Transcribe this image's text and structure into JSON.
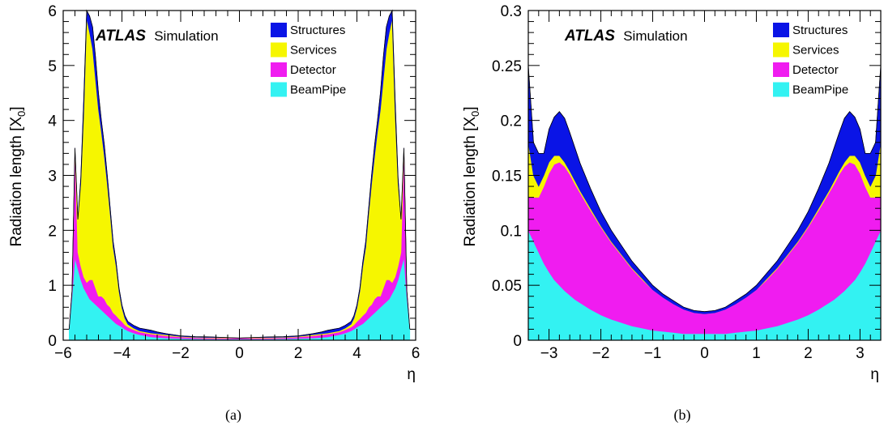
{
  "chart_data": [
    {
      "type": "area",
      "panel_label": "(a)",
      "badge_bold": "ATLAS",
      "badge_text": "Simulation",
      "ylabel": "Radiation length [X",
      "ylabel_sub": "0",
      "ylabel_close": "]",
      "xlabel": "η",
      "xlim": [
        -6,
        6
      ],
      "ylim": [
        0,
        6
      ],
      "xticks": [
        -6,
        -4,
        -2,
        0,
        2,
        4,
        6
      ],
      "xtick_labels": [
        "−6",
        "−4",
        "−2",
        "0",
        "2",
        "4",
        "6"
      ],
      "yticks": [
        0,
        1,
        2,
        3,
        4,
        5,
        6
      ],
      "ytick_labels": [
        "0",
        "1",
        "2",
        "3",
        "4",
        "5",
        "6"
      ],
      "x": [
        -5.8,
        -5.7,
        -5.6,
        -5.5,
        -5.4,
        -5.3,
        -5.2,
        -5.1,
        -5.0,
        -4.9,
        -4.8,
        -4.7,
        -4.6,
        -4.5,
        -4.4,
        -4.3,
        -4.2,
        -4.1,
        -4.0,
        -3.9,
        -3.8,
        -3.6,
        -3.4,
        -3.2,
        -3.0,
        -2.8,
        -2.5,
        -2.0,
        -1.5,
        -1.0,
        -0.5,
        0.0,
        0.5,
        1.0,
        1.5,
        2.0,
        2.5,
        2.8,
        3.0,
        3.2,
        3.4,
        3.6,
        3.8,
        3.9,
        4.0,
        4.1,
        4.2,
        4.3,
        4.4,
        4.5,
        4.6,
        4.7,
        4.8,
        4.9,
        5.0,
        5.1,
        5.2,
        5.3,
        5.4,
        5.5,
        5.6,
        5.7,
        5.8
      ],
      "series": [
        {
          "name": "BeamPipe",
          "color": "#33f2f2",
          "values": [
            0.2,
            0.8,
            1.5,
            1.3,
            1.1,
            0.95,
            0.85,
            0.75,
            0.7,
            0.65,
            0.6,
            0.55,
            0.5,
            0.45,
            0.4,
            0.35,
            0.3,
            0.27,
            0.24,
            0.2,
            0.17,
            0.13,
            0.1,
            0.08,
            0.06,
            0.05,
            0.04,
            0.03,
            0.025,
            0.02,
            0.02,
            0.02,
            0.02,
            0.02,
            0.025,
            0.03,
            0.04,
            0.05,
            0.06,
            0.08,
            0.1,
            0.13,
            0.17,
            0.2,
            0.24,
            0.27,
            0.3,
            0.35,
            0.4,
            0.45,
            0.5,
            0.55,
            0.6,
            0.65,
            0.7,
            0.75,
            0.85,
            0.95,
            1.1,
            1.3,
            1.5,
            0.8,
            0.2
          ]
        },
        {
          "name": "Detector",
          "color": "#f01cf0",
          "values": [
            0.0,
            0.1,
            2.0,
            0.3,
            0.25,
            0.2,
            0.2,
            0.35,
            0.4,
            0.3,
            0.2,
            0.25,
            0.25,
            0.2,
            0.2,
            0.15,
            0.15,
            0.12,
            0.1,
            0.08,
            0.07,
            0.06,
            0.05,
            0.05,
            0.05,
            0.05,
            0.04,
            0.03,
            0.02,
            0.02,
            0.02,
            0.02,
            0.02,
            0.02,
            0.02,
            0.03,
            0.04,
            0.05,
            0.05,
            0.05,
            0.05,
            0.06,
            0.07,
            0.08,
            0.1,
            0.12,
            0.15,
            0.15,
            0.2,
            0.2,
            0.25,
            0.25,
            0.2,
            0.3,
            0.4,
            0.35,
            0.2,
            0.2,
            0.25,
            0.3,
            2.0,
            0.1,
            0.0
          ]
        },
        {
          "name": "Services",
          "color": "#f6f600",
          "values": [
            0.0,
            0.0,
            0.0,
            0.6,
            1.5,
            3.0,
            4.8,
            4.5,
            4.2,
            3.8,
            3.4,
            3.0,
            2.6,
            2.2,
            1.7,
            1.2,
            0.9,
            0.5,
            0.25,
            0.12,
            0.05,
            0.03,
            0.02,
            0.02,
            0.02,
            0.02,
            0.02,
            0.01,
            0.01,
            0.01,
            0.01,
            0.0,
            0.01,
            0.01,
            0.01,
            0.01,
            0.02,
            0.02,
            0.02,
            0.02,
            0.02,
            0.03,
            0.05,
            0.12,
            0.25,
            0.5,
            0.9,
            1.2,
            1.7,
            2.2,
            2.6,
            3.0,
            3.4,
            3.8,
            4.2,
            4.5,
            4.8,
            3.0,
            1.5,
            0.6,
            0.0,
            0.0,
            0.0
          ]
        },
        {
          "name": "Structures",
          "color": "#0a14e6",
          "values": [
            0.0,
            0.0,
            0.0,
            0.0,
            0.1,
            0.25,
            0.4,
            0.3,
            0.4,
            0.4,
            0.3,
            0.2,
            0.2,
            0.15,
            0.1,
            0.1,
            0.08,
            0.06,
            0.05,
            0.05,
            0.05,
            0.05,
            0.05,
            0.05,
            0.05,
            0.03,
            0.02,
            0.01,
            0.01,
            0.01,
            0.0,
            0.0,
            0.0,
            0.01,
            0.01,
            0.01,
            0.02,
            0.03,
            0.05,
            0.05,
            0.05,
            0.05,
            0.05,
            0.05,
            0.05,
            0.06,
            0.08,
            0.1,
            0.1,
            0.15,
            0.2,
            0.2,
            0.3,
            0.4,
            0.4,
            0.3,
            0.4,
            0.25,
            0.1,
            0.0,
            0.0,
            0.0,
            0.0
          ]
        }
      ],
      "legend": [
        "Structures",
        "Services",
        "Detector",
        "BeamPipe"
      ],
      "legend_placement": "top-right",
      "grid": false
    },
    {
      "type": "area",
      "panel_label": "(b)",
      "badge_bold": "ATLAS",
      "badge_text": "Simulation",
      "ylabel": "Radiation length [X",
      "ylabel_sub": "0",
      "ylabel_close": "]",
      "xlabel": "η",
      "xlim": [
        -3.4,
        3.4
      ],
      "ylim": [
        0,
        0.3
      ],
      "xticks": [
        -3,
        -2,
        -1,
        0,
        1,
        2,
        3
      ],
      "xtick_labels": [
        "−3",
        "−2",
        "−1",
        "0",
        "1",
        "2",
        "3"
      ],
      "yticks": [
        0,
        0.05,
        0.1,
        0.15,
        0.2,
        0.25,
        0.3
      ],
      "ytick_labels": [
        "0",
        "0.05",
        "0.1",
        "0.15",
        "0.2",
        "0.25",
        "0.3"
      ],
      "x": [
        -3.4,
        -3.3,
        -3.2,
        -3.1,
        -3.0,
        -2.9,
        -2.8,
        -2.7,
        -2.6,
        -2.5,
        -2.4,
        -2.2,
        -2.0,
        -1.8,
        -1.6,
        -1.4,
        -1.2,
        -1.0,
        -0.8,
        -0.6,
        -0.4,
        -0.2,
        0.0,
        0.2,
        0.4,
        0.6,
        0.8,
        1.0,
        1.2,
        1.4,
        1.6,
        1.8,
        2.0,
        2.2,
        2.4,
        2.5,
        2.6,
        2.7,
        2.8,
        2.9,
        3.0,
        3.1,
        3.2,
        3.3,
        3.4
      ],
      "series": [
        {
          "name": "BeamPipe",
          "color": "#33f2f2",
          "values": [
            0.1,
            0.09,
            0.08,
            0.07,
            0.062,
            0.055,
            0.05,
            0.045,
            0.041,
            0.037,
            0.034,
            0.028,
            0.023,
            0.019,
            0.016,
            0.013,
            0.011,
            0.009,
            0.008,
            0.007,
            0.006,
            0.006,
            0.006,
            0.006,
            0.006,
            0.007,
            0.008,
            0.009,
            0.011,
            0.013,
            0.016,
            0.019,
            0.023,
            0.028,
            0.034,
            0.037,
            0.041,
            0.045,
            0.05,
            0.055,
            0.062,
            0.07,
            0.08,
            0.09,
            0.1
          ]
        },
        {
          "name": "Detector",
          "color": "#f01cf0",
          "values": [
            0.03,
            0.04,
            0.05,
            0.07,
            0.09,
            0.105,
            0.112,
            0.113,
            0.11,
            0.105,
            0.1,
            0.09,
            0.08,
            0.07,
            0.061,
            0.052,
            0.044,
            0.037,
            0.031,
            0.026,
            0.022,
            0.019,
            0.018,
            0.019,
            0.022,
            0.026,
            0.031,
            0.037,
            0.044,
            0.052,
            0.061,
            0.07,
            0.08,
            0.09,
            0.1,
            0.105,
            0.11,
            0.113,
            0.112,
            0.105,
            0.09,
            0.07,
            0.05,
            0.04,
            0.03
          ]
        },
        {
          "name": "Services",
          "color": "#f6f600",
          "values": [
            0.05,
            0.02,
            0.01,
            0.01,
            0.01,
            0.008,
            0.006,
            0.004,
            0.003,
            0.003,
            0.002,
            0.002,
            0.001,
            0.001,
            0.001,
            0.001,
            0.001,
            0.0,
            0.0,
            0.0,
            0.0,
            0.0,
            0.0,
            0.0,
            0.0,
            0.0,
            0.0,
            0.0,
            0.001,
            0.001,
            0.001,
            0.001,
            0.001,
            0.002,
            0.002,
            0.003,
            0.003,
            0.004,
            0.006,
            0.008,
            0.01,
            0.01,
            0.01,
            0.02,
            0.05
          ]
        },
        {
          "name": "Structures",
          "color": "#0a14e6",
          "values": [
            0.07,
            0.03,
            0.03,
            0.02,
            0.03,
            0.035,
            0.04,
            0.04,
            0.035,
            0.03,
            0.025,
            0.018,
            0.013,
            0.01,
            0.008,
            0.006,
            0.005,
            0.004,
            0.003,
            0.003,
            0.002,
            0.002,
            0.002,
            0.002,
            0.002,
            0.003,
            0.003,
            0.004,
            0.005,
            0.006,
            0.008,
            0.01,
            0.013,
            0.018,
            0.025,
            0.03,
            0.035,
            0.04,
            0.04,
            0.035,
            0.03,
            0.02,
            0.03,
            0.03,
            0.07
          ]
        }
      ],
      "legend": [
        "Structures",
        "Services",
        "Detector",
        "BeamPipe"
      ],
      "legend_placement": "top-right",
      "grid": false
    }
  ]
}
